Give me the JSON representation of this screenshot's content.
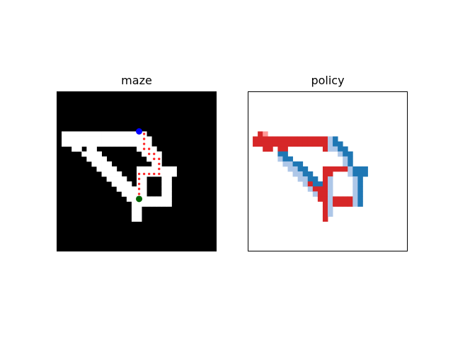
{
  "chart_data": [
    {
      "type": "heatmap",
      "title": "maze",
      "grid_size": 32,
      "colors": {
        "wall": "#000000",
        "open": "#ffffff",
        "path": "#ff2a2a",
        "start": "#0000ff",
        "goal": "#006400"
      },
      "open_cells": [
        [
          8,
          1
        ],
        [
          8,
          2
        ],
        [
          8,
          3
        ],
        [
          8,
          4
        ],
        [
          8,
          5
        ],
        [
          8,
          6
        ],
        [
          8,
          7
        ],
        [
          8,
          8
        ],
        [
          8,
          9
        ],
        [
          8,
          10
        ],
        [
          8,
          11
        ],
        [
          8,
          12
        ],
        [
          8,
          13
        ],
        [
          8,
          14
        ],
        [
          8,
          15
        ],
        [
          8,
          16
        ],
        [
          8,
          17
        ],
        [
          9,
          1
        ],
        [
          9,
          2
        ],
        [
          9,
          3
        ],
        [
          9,
          4
        ],
        [
          9,
          5
        ],
        [
          9,
          6
        ],
        [
          9,
          7
        ],
        [
          9,
          8
        ],
        [
          9,
          9
        ],
        [
          9,
          10
        ],
        [
          9,
          11
        ],
        [
          9,
          12
        ],
        [
          9,
          13
        ],
        [
          9,
          14
        ],
        [
          9,
          15
        ],
        [
          9,
          16
        ],
        [
          9,
          17
        ],
        [
          9,
          18
        ],
        [
          10,
          1
        ],
        [
          10,
          2
        ],
        [
          10,
          3
        ],
        [
          10,
          4
        ],
        [
          10,
          5
        ],
        [
          10,
          6
        ],
        [
          10,
          7
        ],
        [
          10,
          8
        ],
        [
          10,
          9
        ],
        [
          10,
          10
        ],
        [
          10,
          11
        ],
        [
          10,
          12
        ],
        [
          10,
          13
        ],
        [
          10,
          14
        ],
        [
          10,
          15
        ],
        [
          10,
          16
        ],
        [
          10,
          17
        ],
        [
          10,
          18
        ],
        [
          11,
          3
        ],
        [
          11,
          4
        ],
        [
          11,
          6
        ],
        [
          11,
          7
        ],
        [
          11,
          16
        ],
        [
          11,
          17
        ],
        [
          11,
          18
        ],
        [
          11,
          19
        ],
        [
          12,
          5
        ],
        [
          12,
          6
        ],
        [
          12,
          7
        ],
        [
          12,
          8
        ],
        [
          12,
          17
        ],
        [
          12,
          18
        ],
        [
          12,
          19
        ],
        [
          12,
          20
        ],
        [
          13,
          6
        ],
        [
          13,
          7
        ],
        [
          13,
          8
        ],
        [
          13,
          9
        ],
        [
          13,
          18
        ],
        [
          13,
          19
        ],
        [
          13,
          20
        ],
        [
          14,
          7
        ],
        [
          14,
          8
        ],
        [
          14,
          9
        ],
        [
          14,
          10
        ],
        [
          14,
          19
        ],
        [
          14,
          20
        ],
        [
          15,
          8
        ],
        [
          15,
          9
        ],
        [
          15,
          10
        ],
        [
          15,
          11
        ],
        [
          15,
          16
        ],
        [
          15,
          17
        ],
        [
          15,
          18
        ],
        [
          15,
          19
        ],
        [
          15,
          20
        ],
        [
          15,
          21
        ],
        [
          15,
          22
        ],
        [
          15,
          23
        ],
        [
          16,
          9
        ],
        [
          16,
          10
        ],
        [
          16,
          11
        ],
        [
          16,
          12
        ],
        [
          16,
          16
        ],
        [
          16,
          17
        ],
        [
          16,
          18
        ],
        [
          16,
          19
        ],
        [
          16,
          20
        ],
        [
          16,
          21
        ],
        [
          16,
          22
        ],
        [
          16,
          23
        ],
        [
          17,
          10
        ],
        [
          17,
          11
        ],
        [
          17,
          12
        ],
        [
          17,
          13
        ],
        [
          17,
          16
        ],
        [
          17,
          17
        ],
        [
          17,
          21
        ],
        [
          17,
          22
        ],
        [
          18,
          11
        ],
        [
          18,
          12
        ],
        [
          18,
          13
        ],
        [
          18,
          14
        ],
        [
          18,
          16
        ],
        [
          18,
          17
        ],
        [
          18,
          21
        ],
        [
          18,
          22
        ],
        [
          19,
          12
        ],
        [
          19,
          13
        ],
        [
          19,
          14
        ],
        [
          19,
          15
        ],
        [
          19,
          16
        ],
        [
          19,
          17
        ],
        [
          19,
          21
        ],
        [
          19,
          22
        ],
        [
          20,
          13
        ],
        [
          20,
          14
        ],
        [
          20,
          15
        ],
        [
          20,
          16
        ],
        [
          20,
          17
        ],
        [
          20,
          21
        ],
        [
          20,
          22
        ],
        [
          21,
          14
        ],
        [
          21,
          15
        ],
        [
          21,
          16
        ],
        [
          21,
          17
        ],
        [
          21,
          18
        ],
        [
          21,
          19
        ],
        [
          21,
          20
        ],
        [
          21,
          21
        ],
        [
          21,
          22
        ],
        [
          22,
          15
        ],
        [
          22,
          16
        ],
        [
          22,
          17
        ],
        [
          22,
          18
        ],
        [
          22,
          19
        ],
        [
          22,
          20
        ],
        [
          22,
          21
        ],
        [
          22,
          22
        ],
        [
          23,
          15
        ],
        [
          23,
          16
        ],
        [
          24,
          15
        ],
        [
          24,
          16
        ],
        [
          25,
          15
        ],
        [
          25,
          16
        ]
      ],
      "path": [
        [
          8,
          17
        ],
        [
          9,
          17
        ],
        [
          10,
          17
        ],
        [
          11,
          17
        ],
        [
          11,
          18
        ],
        [
          12,
          18
        ],
        [
          12,
          19
        ],
        [
          13,
          19
        ],
        [
          13,
          20
        ],
        [
          14,
          20
        ],
        [
          15,
          20
        ],
        [
          16,
          20
        ],
        [
          16,
          19
        ],
        [
          16,
          18
        ],
        [
          16,
          17
        ],
        [
          16,
          16
        ],
        [
          17,
          16
        ],
        [
          18,
          16
        ],
        [
          19,
          16
        ],
        [
          20,
          16
        ],
        [
          21,
          16
        ]
      ],
      "start": [
        8,
        16.5
      ],
      "goal": [
        21.5,
        16.5
      ]
    },
    {
      "type": "heatmap",
      "title": "policy",
      "grid_size": 32,
      "colors": {
        "left": "#d62728",
        "right": "#1f77b4",
        "up_left": "#ff9896",
        "up_right": "#aec7e8",
        "background": "#ffffff",
        "frame": "#000000"
      },
      "cells": [
        [
          8,
          2,
          "#d62728"
        ],
        [
          8,
          3,
          "#ff9896"
        ],
        [
          9,
          1,
          "#d62728"
        ],
        [
          9,
          2,
          "#d62728"
        ],
        [
          9,
          3,
          "#d62728"
        ],
        [
          9,
          4,
          "#d62728"
        ],
        [
          9,
          5,
          "#d62728"
        ],
        [
          9,
          6,
          "#d62728"
        ],
        [
          9,
          7,
          "#d62728"
        ],
        [
          9,
          8,
          "#d62728"
        ],
        [
          9,
          9,
          "#d62728"
        ],
        [
          9,
          10,
          "#d62728"
        ],
        [
          9,
          11,
          "#d62728"
        ],
        [
          9,
          12,
          "#d62728"
        ],
        [
          9,
          13,
          "#d62728"
        ],
        [
          9,
          14,
          "#d62728"
        ],
        [
          9,
          15,
          "#d62728"
        ],
        [
          9,
          16,
          "#aec7e8"
        ],
        [
          9,
          17,
          "#1f77b4"
        ],
        [
          10,
          1,
          "#d62728"
        ],
        [
          10,
          2,
          "#d62728"
        ],
        [
          10,
          3,
          "#d62728"
        ],
        [
          10,
          4,
          "#d62728"
        ],
        [
          10,
          5,
          "#d62728"
        ],
        [
          10,
          6,
          "#d62728"
        ],
        [
          10,
          7,
          "#d62728"
        ],
        [
          10,
          8,
          "#d62728"
        ],
        [
          10,
          9,
          "#d62728"
        ],
        [
          10,
          10,
          "#d62728"
        ],
        [
          10,
          11,
          "#d62728"
        ],
        [
          10,
          12,
          "#d62728"
        ],
        [
          10,
          13,
          "#d62728"
        ],
        [
          10,
          14,
          "#d62728"
        ],
        [
          10,
          15,
          "#d62728"
        ],
        [
          10,
          16,
          "#aec7e8"
        ],
        [
          10,
          17,
          "#1f77b4"
        ],
        [
          10,
          18,
          "#1f77b4"
        ],
        [
          11,
          3,
          "#d62728"
        ],
        [
          11,
          4,
          "#d62728"
        ],
        [
          11,
          6,
          "#d62728"
        ],
        [
          11,
          7,
          "#d62728"
        ],
        [
          11,
          15,
          "#d62728"
        ],
        [
          11,
          16,
          "#aec7e8"
        ],
        [
          11,
          17,
          "#aec7e8"
        ],
        [
          11,
          18,
          "#1f77b4"
        ],
        [
          11,
          19,
          "#1f77b4"
        ],
        [
          12,
          6,
          "#1f77b4"
        ],
        [
          12,
          7,
          "#1f77b4"
        ],
        [
          12,
          18,
          "#aec7e8"
        ],
        [
          12,
          19,
          "#1f77b4"
        ],
        [
          12,
          20,
          "#1f77b4"
        ],
        [
          13,
          6,
          "#aec7e8"
        ],
        [
          13,
          7,
          "#1f77b4"
        ],
        [
          13,
          8,
          "#1f77b4"
        ],
        [
          13,
          19,
          "#aec7e8"
        ],
        [
          13,
          20,
          "#1f77b4"
        ],
        [
          14,
          7,
          "#aec7e8"
        ],
        [
          14,
          8,
          "#aec7e8"
        ],
        [
          14,
          9,
          "#1f77b4"
        ],
        [
          14,
          10,
          "#1f77b4"
        ],
        [
          14,
          19,
          "#aec7e8"
        ],
        [
          14,
          20,
          "#1f77b4"
        ],
        [
          15,
          8,
          "#aec7e8"
        ],
        [
          15,
          9,
          "#aec7e8"
        ],
        [
          15,
          10,
          "#1f77b4"
        ],
        [
          15,
          11,
          "#1f77b4"
        ],
        [
          15,
          15,
          "#d62728"
        ],
        [
          15,
          16,
          "#d62728"
        ],
        [
          15,
          17,
          "#d62728"
        ],
        [
          15,
          18,
          "#d62728"
        ],
        [
          15,
          19,
          "#d62728"
        ],
        [
          15,
          20,
          "#aec7e8"
        ],
        [
          15,
          21,
          "#1f77b4"
        ],
        [
          15,
          22,
          "#1f77b4"
        ],
        [
          15,
          23,
          "#1f77b4"
        ],
        [
          16,
          9,
          "#aec7e8"
        ],
        [
          16,
          10,
          "#aec7e8"
        ],
        [
          16,
          11,
          "#1f77b4"
        ],
        [
          16,
          12,
          "#1f77b4"
        ],
        [
          16,
          15,
          "#d62728"
        ],
        [
          16,
          16,
          "#d62728"
        ],
        [
          16,
          20,
          "#aec7e8"
        ],
        [
          16,
          21,
          "#1f77b4"
        ],
        [
          16,
          22,
          "#1f77b4"
        ],
        [
          16,
          23,
          "#1f77b4"
        ],
        [
          17,
          10,
          "#aec7e8"
        ],
        [
          17,
          11,
          "#aec7e8"
        ],
        [
          17,
          12,
          "#1f77b4"
        ],
        [
          17,
          13,
          "#1f77b4"
        ],
        [
          17,
          15,
          "#d62728"
        ],
        [
          17,
          16,
          "#aec7e8"
        ],
        [
          17,
          21,
          "#aec7e8"
        ],
        [
          17,
          22,
          "#1f77b4"
        ],
        [
          18,
          11,
          "#aec7e8"
        ],
        [
          18,
          12,
          "#d62728"
        ],
        [
          18,
          13,
          "#1f77b4"
        ],
        [
          18,
          14,
          "#1f77b4"
        ],
        [
          18,
          15,
          "#d62728"
        ],
        [
          18,
          16,
          "#aec7e8"
        ],
        [
          18,
          21,
          "#aec7e8"
        ],
        [
          18,
          22,
          "#1f77b4"
        ],
        [
          19,
          12,
          "#aec7e8"
        ],
        [
          19,
          13,
          "#d62728"
        ],
        [
          19,
          14,
          "#d62728"
        ],
        [
          19,
          15,
          "#d62728"
        ],
        [
          19,
          16,
          "#aec7e8"
        ],
        [
          19,
          21,
          "#aec7e8"
        ],
        [
          19,
          22,
          "#1f77b4"
        ],
        [
          20,
          13,
          "#aec7e8"
        ],
        [
          20,
          14,
          "#d62728"
        ],
        [
          20,
          15,
          "#d62728"
        ],
        [
          20,
          16,
          "#aec7e8"
        ],
        [
          20,
          21,
          "#aec7e8"
        ],
        [
          20,
          22,
          "#1f77b4"
        ],
        [
          21,
          14,
          "#d62728"
        ],
        [
          21,
          15,
          "#d62728"
        ],
        [
          21,
          16,
          "#aec7e8"
        ],
        [
          21,
          17,
          "#d62728"
        ],
        [
          21,
          18,
          "#d62728"
        ],
        [
          21,
          19,
          "#d62728"
        ],
        [
          21,
          20,
          "#d62728"
        ],
        [
          21,
          21,
          "#aec7e8"
        ],
        [
          21,
          22,
          "#1f77b4"
        ],
        [
          22,
          15,
          "#d62728"
        ],
        [
          22,
          16,
          "#aec7e8"
        ],
        [
          22,
          17,
          "#d62728"
        ],
        [
          22,
          18,
          "#d62728"
        ],
        [
          22,
          19,
          "#d62728"
        ],
        [
          22,
          20,
          "#d62728"
        ],
        [
          22,
          21,
          "#aec7e8"
        ],
        [
          22,
          22,
          "#1f77b4"
        ],
        [
          23,
          15,
          "#d62728"
        ],
        [
          23,
          16,
          "#aec7e8"
        ],
        [
          24,
          15,
          "#d62728"
        ],
        [
          24,
          16,
          "#aec7e8"
        ],
        [
          25,
          15,
          "#d62728"
        ]
      ]
    }
  ]
}
